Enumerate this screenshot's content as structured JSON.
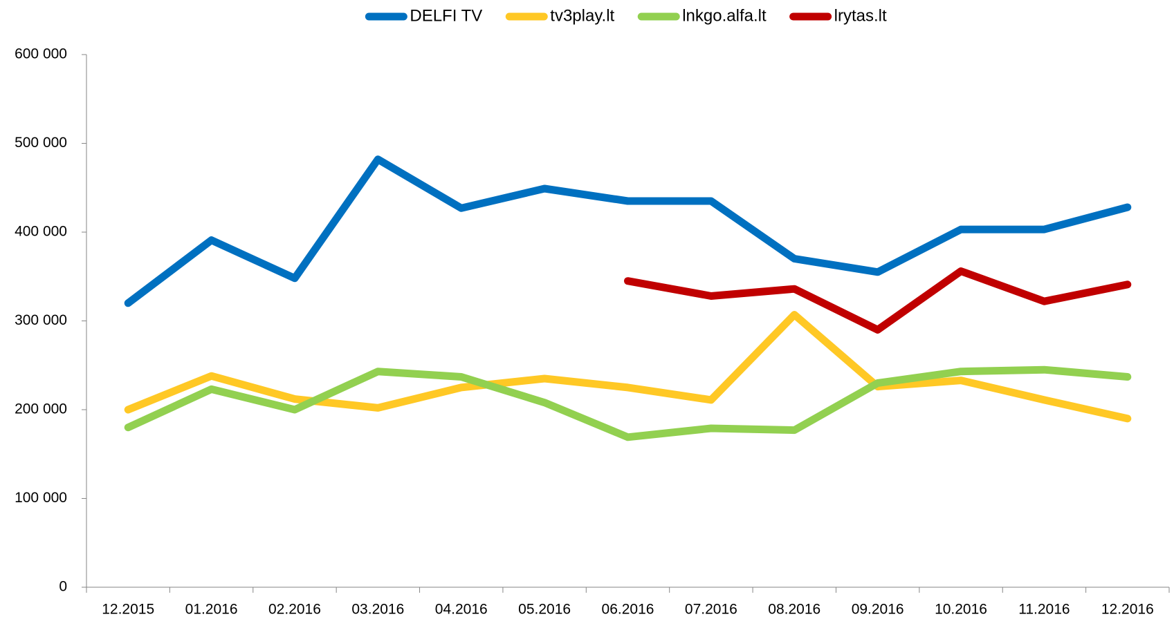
{
  "chart_data": {
    "type": "line",
    "categories": [
      "12.2015",
      "01.2016",
      "02.2016",
      "03.2016",
      "04.2016",
      "05.2016",
      "06.2016",
      "07.2016",
      "08.2016",
      "09.2016",
      "10.2016",
      "11.2016",
      "12.2016"
    ],
    "series": [
      {
        "name": "DELFI TV",
        "color": "#0070c0",
        "values": [
          320000,
          391000,
          348000,
          482000,
          427000,
          449000,
          435000,
          435000,
          370000,
          355000,
          403000,
          403000,
          428000
        ]
      },
      {
        "name": "tv3play.lt",
        "color": "#ffc825",
        "values": [
          200000,
          238000,
          212000,
          202000,
          225000,
          235000,
          225000,
          211000,
          307000,
          226000,
          233000,
          211000,
          190000
        ]
      },
      {
        "name": "lnkgo.alfa.lt",
        "color": "#92d050",
        "values": [
          180000,
          223000,
          200000,
          243000,
          237000,
          208000,
          169000,
          179000,
          177000,
          230000,
          243000,
          245000,
          237000
        ]
      },
      {
        "name": "lrytas.lt",
        "color": "#c00000",
        "values": [
          null,
          null,
          null,
          null,
          null,
          null,
          345000,
          328000,
          336000,
          290000,
          356000,
          322000,
          341000
        ]
      }
    ],
    "ylim": [
      0,
      600000
    ],
    "yticks": [
      0,
      {
        "value": 100000,
        "label": "100 000"
      },
      {
        "value": 200000,
        "label": "200 000"
      },
      {
        "value": 300000,
        "label": "300 000"
      },
      {
        "value": 400000,
        "label": "400 000"
      },
      {
        "value": 500000,
        "label": "500 000"
      },
      {
        "value": 600000,
        "label": "600 000"
      }
    ],
    "legend": "top"
  }
}
